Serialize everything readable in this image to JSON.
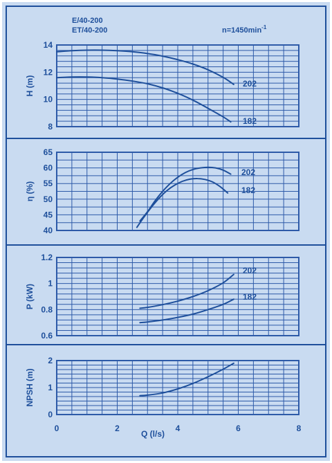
{
  "colors": {
    "background": "#c9dbf1",
    "outer_frame": "#1e4f9b",
    "grid": "#2d5aa8",
    "curve": "#1e4f9b",
    "text": "#1e4f9b"
  },
  "header": {
    "model_line_1": "E/40-200",
    "model_line_2": "ET/40-200",
    "speed_prefix": "n=1450min",
    "speed_superscript": "-1"
  },
  "x_axis": {
    "label": "Q (l/s)",
    "min": 0,
    "max": 8,
    "ticks": [
      "0",
      "2",
      "4",
      "6",
      "8"
    ]
  },
  "chart_data": [
    {
      "type": "line",
      "ylabel": "H (m)",
      "xlim": [
        0,
        8
      ],
      "ylim": [
        8,
        14
      ],
      "y_ticks": [
        "8",
        "10",
        "12",
        "14"
      ],
      "grid": true,
      "series": [
        {
          "name": "202",
          "x": [
            0,
            0.5,
            1,
            1.5,
            2,
            2.5,
            3,
            3.5,
            4,
            4.5,
            5,
            5.5,
            5.85
          ],
          "y": [
            13.5,
            13.58,
            13.62,
            13.62,
            13.58,
            13.5,
            13.37,
            13.18,
            12.92,
            12.6,
            12.18,
            11.62,
            11.1
          ]
        },
        {
          "name": "182",
          "x": [
            0,
            0.5,
            1,
            1.5,
            2,
            2.5,
            3,
            3.5,
            4,
            4.5,
            5,
            5.5,
            5.75
          ],
          "y": [
            11.6,
            11.65,
            11.65,
            11.6,
            11.5,
            11.35,
            11.15,
            10.85,
            10.45,
            9.95,
            9.35,
            8.72,
            8.35
          ]
        }
      ]
    },
    {
      "type": "line",
      "ylabel": "η (%)",
      "xlim": [
        0,
        8
      ],
      "ylim": [
        40,
        65
      ],
      "y_ticks": [
        "40",
        "45",
        "50",
        "55",
        "60",
        "65"
      ],
      "grid": true,
      "series": [
        {
          "name": "202",
          "x": [
            2.75,
            3,
            3.25,
            3.5,
            3.75,
            4,
            4.25,
            4.5,
            4.75,
            5,
            5.25,
            5.5,
            5.75
          ],
          "y": [
            43,
            46,
            49.5,
            52.5,
            55,
            57,
            58.5,
            59.5,
            60,
            60.2,
            60,
            59.3,
            58
          ]
        },
        {
          "name": "182",
          "x": [
            2.65,
            2.9,
            3.15,
            3.4,
            3.65,
            3.9,
            4.15,
            4.4,
            4.65,
            4.9,
            5.15,
            5.4,
            5.65
          ],
          "y": [
            41,
            44.5,
            47.7,
            50.5,
            52.8,
            54.5,
            55.7,
            56.4,
            56.6,
            56.3,
            55.5,
            54,
            52
          ]
        }
      ]
    },
    {
      "type": "line",
      "ylabel": "P (kW)",
      "xlim": [
        0,
        8
      ],
      "ylim": [
        0.6,
        1.2
      ],
      "y_ticks": [
        "0.6",
        "0.8",
        "1",
        "1.2"
      ],
      "grid": true,
      "series": [
        {
          "name": "202",
          "x": [
            2.75,
            3,
            3.5,
            4,
            4.5,
            5,
            5.5,
            5.85
          ],
          "y": [
            0.81,
            0.817,
            0.838,
            0.865,
            0.9,
            0.945,
            1.005,
            1.07
          ]
        },
        {
          "name": "182",
          "x": [
            2.75,
            3,
            3.5,
            4,
            4.5,
            5,
            5.5,
            5.85
          ],
          "y": [
            0.7,
            0.705,
            0.72,
            0.74,
            0.765,
            0.8,
            0.84,
            0.88
          ]
        }
      ]
    },
    {
      "type": "line",
      "ylabel": "NPSH (m)",
      "xlim": [
        0,
        8
      ],
      "ylim": [
        0,
        2
      ],
      "y_ticks": [
        "0",
        "1",
        "2"
      ],
      "grid": true,
      "series": [
        {
          "x": [
            2.75,
            3,
            3.5,
            4,
            4.5,
            5,
            5.5,
            5.85
          ],
          "y": [
            0.7,
            0.72,
            0.8,
            0.95,
            1.15,
            1.4,
            1.68,
            1.9
          ]
        }
      ]
    }
  ]
}
